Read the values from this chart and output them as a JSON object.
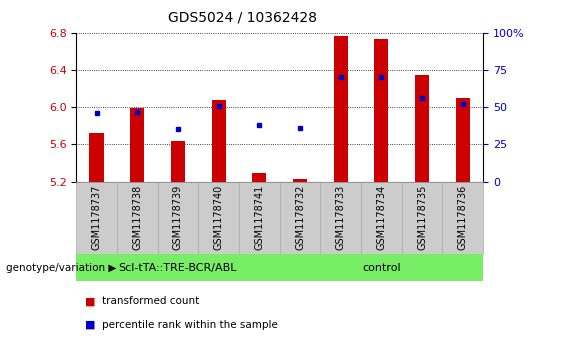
{
  "title": "GDS5024 / 10362428",
  "samples": [
    "GSM1178737",
    "GSM1178738",
    "GSM1178739",
    "GSM1178740",
    "GSM1178741",
    "GSM1178732",
    "GSM1178733",
    "GSM1178734",
    "GSM1178735",
    "GSM1178736"
  ],
  "transformed_counts": [
    5.72,
    5.99,
    5.64,
    6.08,
    5.29,
    5.23,
    6.76,
    6.73,
    6.35,
    6.1
  ],
  "percentile_ranks": [
    46,
    47,
    35,
    51,
    38,
    36,
    70,
    70,
    56,
    52
  ],
  "ylim_left": [
    5.2,
    6.8
  ],
  "ylim_right": [
    0,
    100
  ],
  "yticks_left": [
    5.2,
    5.6,
    6.0,
    6.4,
    6.8
  ],
  "yticks_right": [
    0,
    25,
    50,
    75,
    100
  ],
  "bar_color": "#cc0000",
  "dot_color": "#0000cc",
  "bar_bottom": 5.2,
  "group1_label": "Scl-tTA::TRE-BCR/ABL",
  "group2_label": "control",
  "group1_count": 5,
  "group2_count": 5,
  "group_color": "#77ee66",
  "xlabel_area": "genotype/variation",
  "legend_items": [
    "transformed count",
    "percentile rank within the sample"
  ],
  "legend_colors": [
    "#cc0000",
    "#0000cc"
  ],
  "tick_label_color_left": "#cc0000",
  "tick_label_color_right": "#0000cc",
  "bar_width": 0.35,
  "xtick_bg_color": "#cccccc",
  "xtick_border_color": "#aaaaaa"
}
